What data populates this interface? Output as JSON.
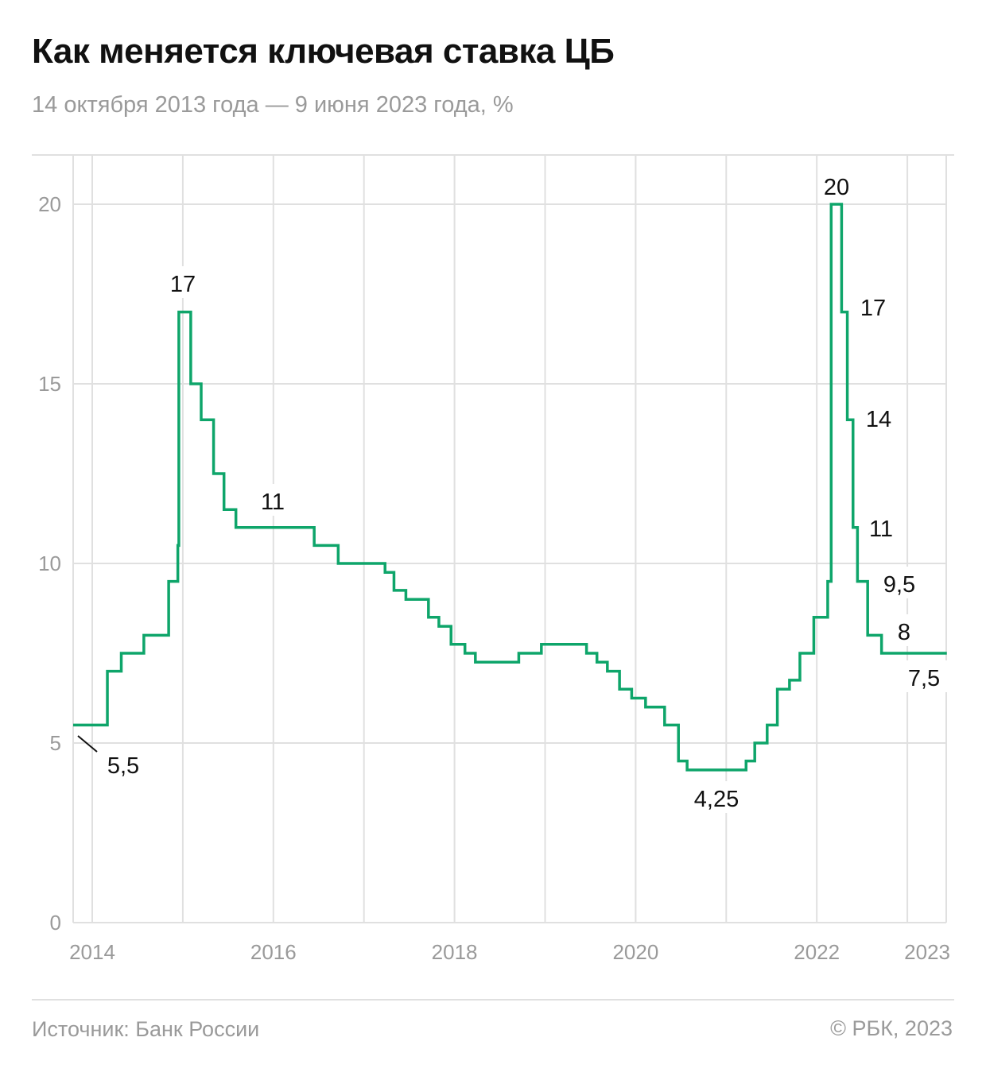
{
  "header": {
    "title": "Как меняется ключевая ставка ЦБ",
    "subtitle": "14 октября 2013 года — 9 июня 2023 года, %"
  },
  "footer": {
    "source": "Источник: Банк России",
    "copyright": "© РБК, 2023"
  },
  "chart_data": {
    "type": "line",
    "step": true,
    "title": "Как меняется ключевая ставка ЦБ",
    "xlabel": "",
    "ylabel": "",
    "xlim": [
      "2013-10-14",
      "2023-06-09"
    ],
    "ylim": [
      0,
      21
    ],
    "grid": true,
    "line_color": "#0ea56a",
    "y_ticks": [
      0,
      5,
      10,
      15,
      20
    ],
    "x_ticks": [
      {
        "year": 2014,
        "label": "2014"
      },
      {
        "year": 2015,
        "label": ""
      },
      {
        "year": 2016,
        "label": "2016"
      },
      {
        "year": 2017,
        "label": ""
      },
      {
        "year": 2018,
        "label": "2018"
      },
      {
        "year": 2019,
        "label": ""
      },
      {
        "year": 2020,
        "label": "2020"
      },
      {
        "year": 2021,
        "label": ""
      },
      {
        "year": 2022,
        "label": "2022"
      },
      {
        "year": 2023,
        "label": "2023"
      }
    ],
    "points": [
      [
        "2013-10-14",
        5.5
      ],
      [
        "2014-03-03",
        7.0
      ],
      [
        "2014-04-28",
        7.5
      ],
      [
        "2014-07-28",
        8.0
      ],
      [
        "2014-11-05",
        9.5
      ],
      [
        "2014-12-12",
        10.5
      ],
      [
        "2014-12-16",
        17.0
      ],
      [
        "2015-02-02",
        15.0
      ],
      [
        "2015-03-16",
        14.0
      ],
      [
        "2015-05-05",
        12.5
      ],
      [
        "2015-06-16",
        11.5
      ],
      [
        "2015-08-03",
        11.0
      ],
      [
        "2016-06-14",
        10.5
      ],
      [
        "2016-09-19",
        10.0
      ],
      [
        "2017-03-27",
        9.75
      ],
      [
        "2017-05-02",
        9.25
      ],
      [
        "2017-06-19",
        9.0
      ],
      [
        "2017-09-18",
        8.5
      ],
      [
        "2017-10-30",
        8.25
      ],
      [
        "2017-12-18",
        7.75
      ],
      [
        "2018-02-12",
        7.5
      ],
      [
        "2018-03-26",
        7.25
      ],
      [
        "2018-09-17",
        7.5
      ],
      [
        "2018-12-17",
        7.75
      ],
      [
        "2019-06-17",
        7.5
      ],
      [
        "2019-07-29",
        7.25
      ],
      [
        "2019-09-09",
        7.0
      ],
      [
        "2019-10-28",
        6.5
      ],
      [
        "2019-12-16",
        6.25
      ],
      [
        "2020-02-10",
        6.0
      ],
      [
        "2020-04-27",
        5.5
      ],
      [
        "2020-06-22",
        4.5
      ],
      [
        "2020-07-27",
        4.25
      ],
      [
        "2021-03-22",
        4.5
      ],
      [
        "2021-04-26",
        5.0
      ],
      [
        "2021-06-15",
        5.5
      ],
      [
        "2021-07-26",
        6.5
      ],
      [
        "2021-09-13",
        6.75
      ],
      [
        "2021-10-25",
        7.5
      ],
      [
        "2021-12-20",
        8.5
      ],
      [
        "2022-02-14",
        9.5
      ],
      [
        "2022-02-28",
        20.0
      ],
      [
        "2022-04-11",
        17.0
      ],
      [
        "2022-05-04",
        14.0
      ],
      [
        "2022-05-27",
        11.0
      ],
      [
        "2022-06-14",
        9.5
      ],
      [
        "2022-07-25",
        8.0
      ],
      [
        "2022-09-19",
        7.5
      ],
      [
        "2023-06-09",
        7.5
      ]
    ],
    "annotations": [
      "5,5",
      "17",
      "11",
      "4,25",
      "20",
      "17",
      "14",
      "11",
      "9,5",
      "8",
      "7,5"
    ]
  }
}
